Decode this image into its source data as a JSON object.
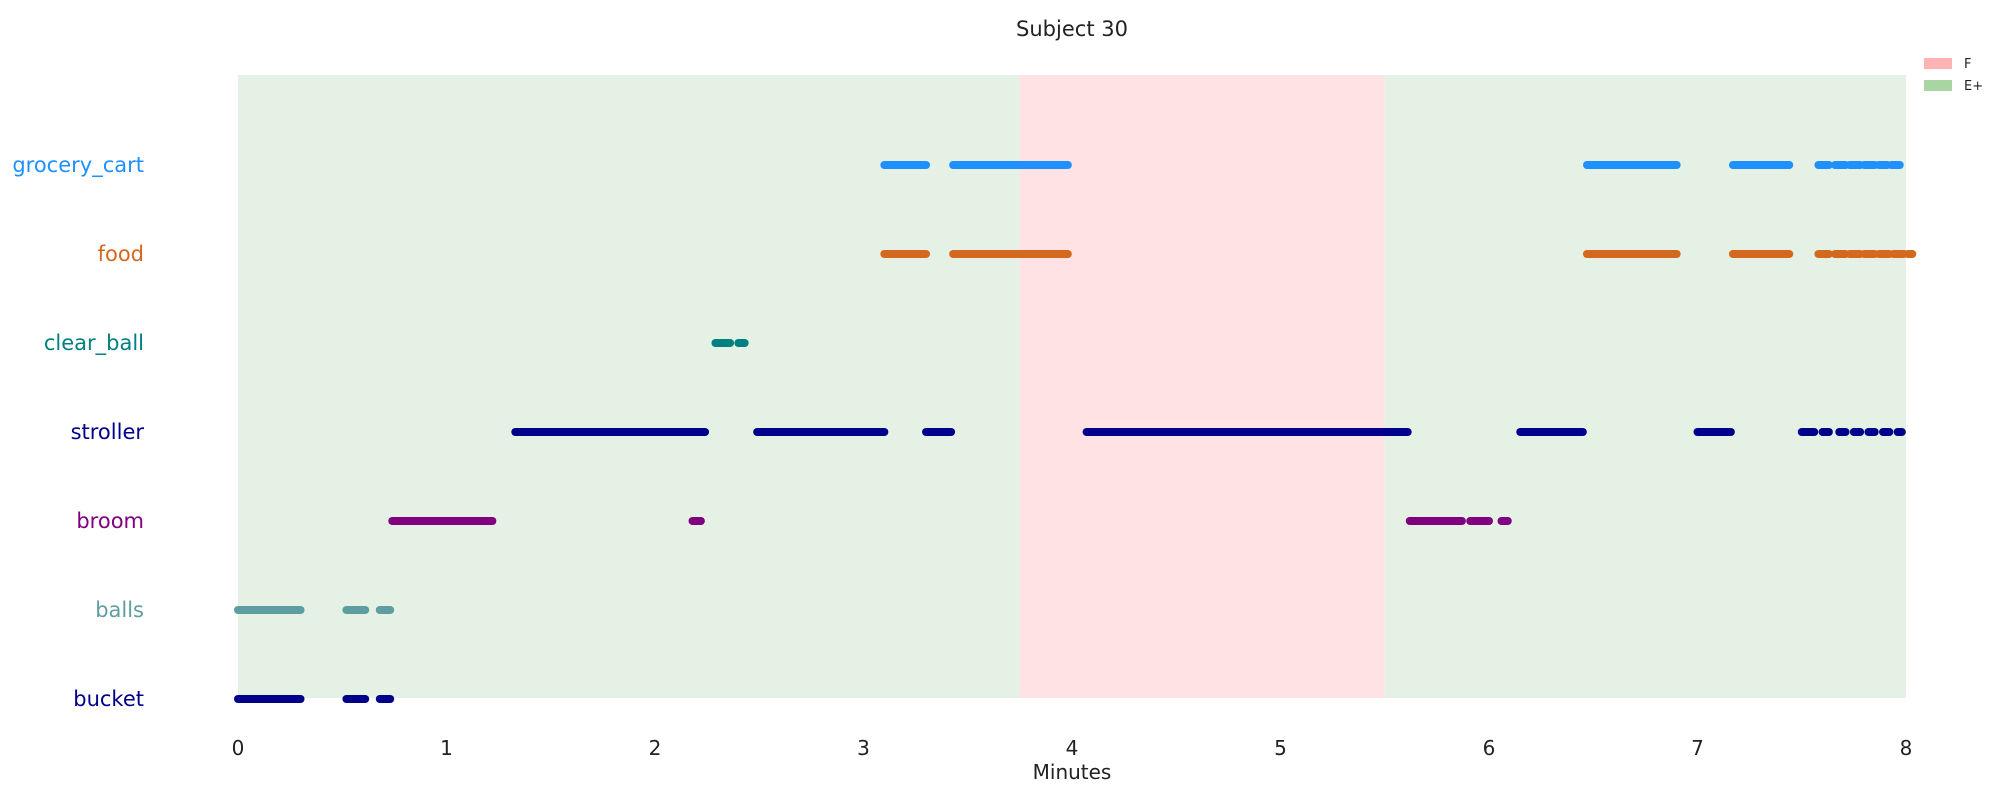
{
  "chart_data": {
    "type": "timeline",
    "title": "Subject 30",
    "xlabel": "Minutes",
    "xlim": [
      0,
      8
    ],
    "x_ticks": [
      "0",
      "1",
      "2",
      "3",
      "4",
      "5",
      "6",
      "7",
      "8"
    ],
    "background_regions": [
      {
        "label": "E+",
        "start": 0.0,
        "end": 3.75,
        "color": "#e4f1e4"
      },
      {
        "label": "F",
        "start": 3.75,
        "end": 5.5,
        "color": "#ffe3e4"
      },
      {
        "label": "E+",
        "start": 5.5,
        "end": 8.0,
        "color": "#e4f1e4"
      }
    ],
    "legend": [
      {
        "label": "F",
        "color": "#ffb3b3"
      },
      {
        "label": "E+",
        "color": "#a8d5a2"
      }
    ],
    "series": [
      {
        "name": "grocery_cart",
        "color": "#1e90ff",
        "segments": [
          [
            3.1,
            3.3
          ],
          [
            3.43,
            3.98
          ],
          [
            6.47,
            6.9
          ],
          [
            7.17,
            7.44
          ],
          [
            7.58,
            7.63
          ],
          [
            7.66,
            7.71
          ],
          [
            7.73,
            7.78
          ],
          [
            7.8,
            7.85
          ],
          [
            7.87,
            7.91
          ],
          [
            7.93,
            7.97
          ]
        ]
      },
      {
        "name": "food",
        "color": "#d2691e",
        "segments": [
          [
            3.1,
            3.3
          ],
          [
            3.43,
            3.98
          ],
          [
            6.47,
            6.9
          ],
          [
            7.17,
            7.44
          ],
          [
            7.58,
            7.63
          ],
          [
            7.66,
            7.71
          ],
          [
            7.73,
            7.78
          ],
          [
            7.8,
            7.85
          ],
          [
            7.87,
            7.92
          ],
          [
            7.94,
            7.99
          ],
          [
            8.01,
            8.03
          ]
        ]
      },
      {
        "name": "clear_ball",
        "color": "#008080",
        "segments": [
          [
            2.29,
            2.36
          ],
          [
            2.4,
            2.43
          ]
        ]
      },
      {
        "name": "stroller",
        "color": "#00008b",
        "segments": [
          [
            1.33,
            2.24
          ],
          [
            2.49,
            3.1
          ],
          [
            3.3,
            3.42
          ],
          [
            4.07,
            5.61
          ],
          [
            6.15,
            6.45
          ],
          [
            7.0,
            7.16
          ],
          [
            7.5,
            7.56
          ],
          [
            7.6,
            7.63
          ],
          [
            7.68,
            7.71
          ],
          [
            7.75,
            7.78
          ],
          [
            7.82,
            7.85
          ],
          [
            7.89,
            7.92
          ],
          [
            7.96,
            7.98
          ]
        ]
      },
      {
        "name": "broom",
        "color": "#800080",
        "segments": [
          [
            0.74,
            1.22
          ],
          [
            2.18,
            2.22
          ],
          [
            5.62,
            5.87
          ],
          [
            5.91,
            6.0
          ],
          [
            6.06,
            6.09
          ]
        ]
      },
      {
        "name": "balls",
        "color": "#5f9ea0",
        "segments": [
          [
            0.0,
            0.3
          ],
          [
            0.52,
            0.61
          ],
          [
            0.68,
            0.73
          ]
        ]
      },
      {
        "name": "bucket",
        "color": "#00008b",
        "segments": [
          [
            0.0,
            0.3
          ],
          [
            0.52,
            0.61
          ],
          [
            0.68,
            0.73
          ]
        ]
      }
    ]
  }
}
